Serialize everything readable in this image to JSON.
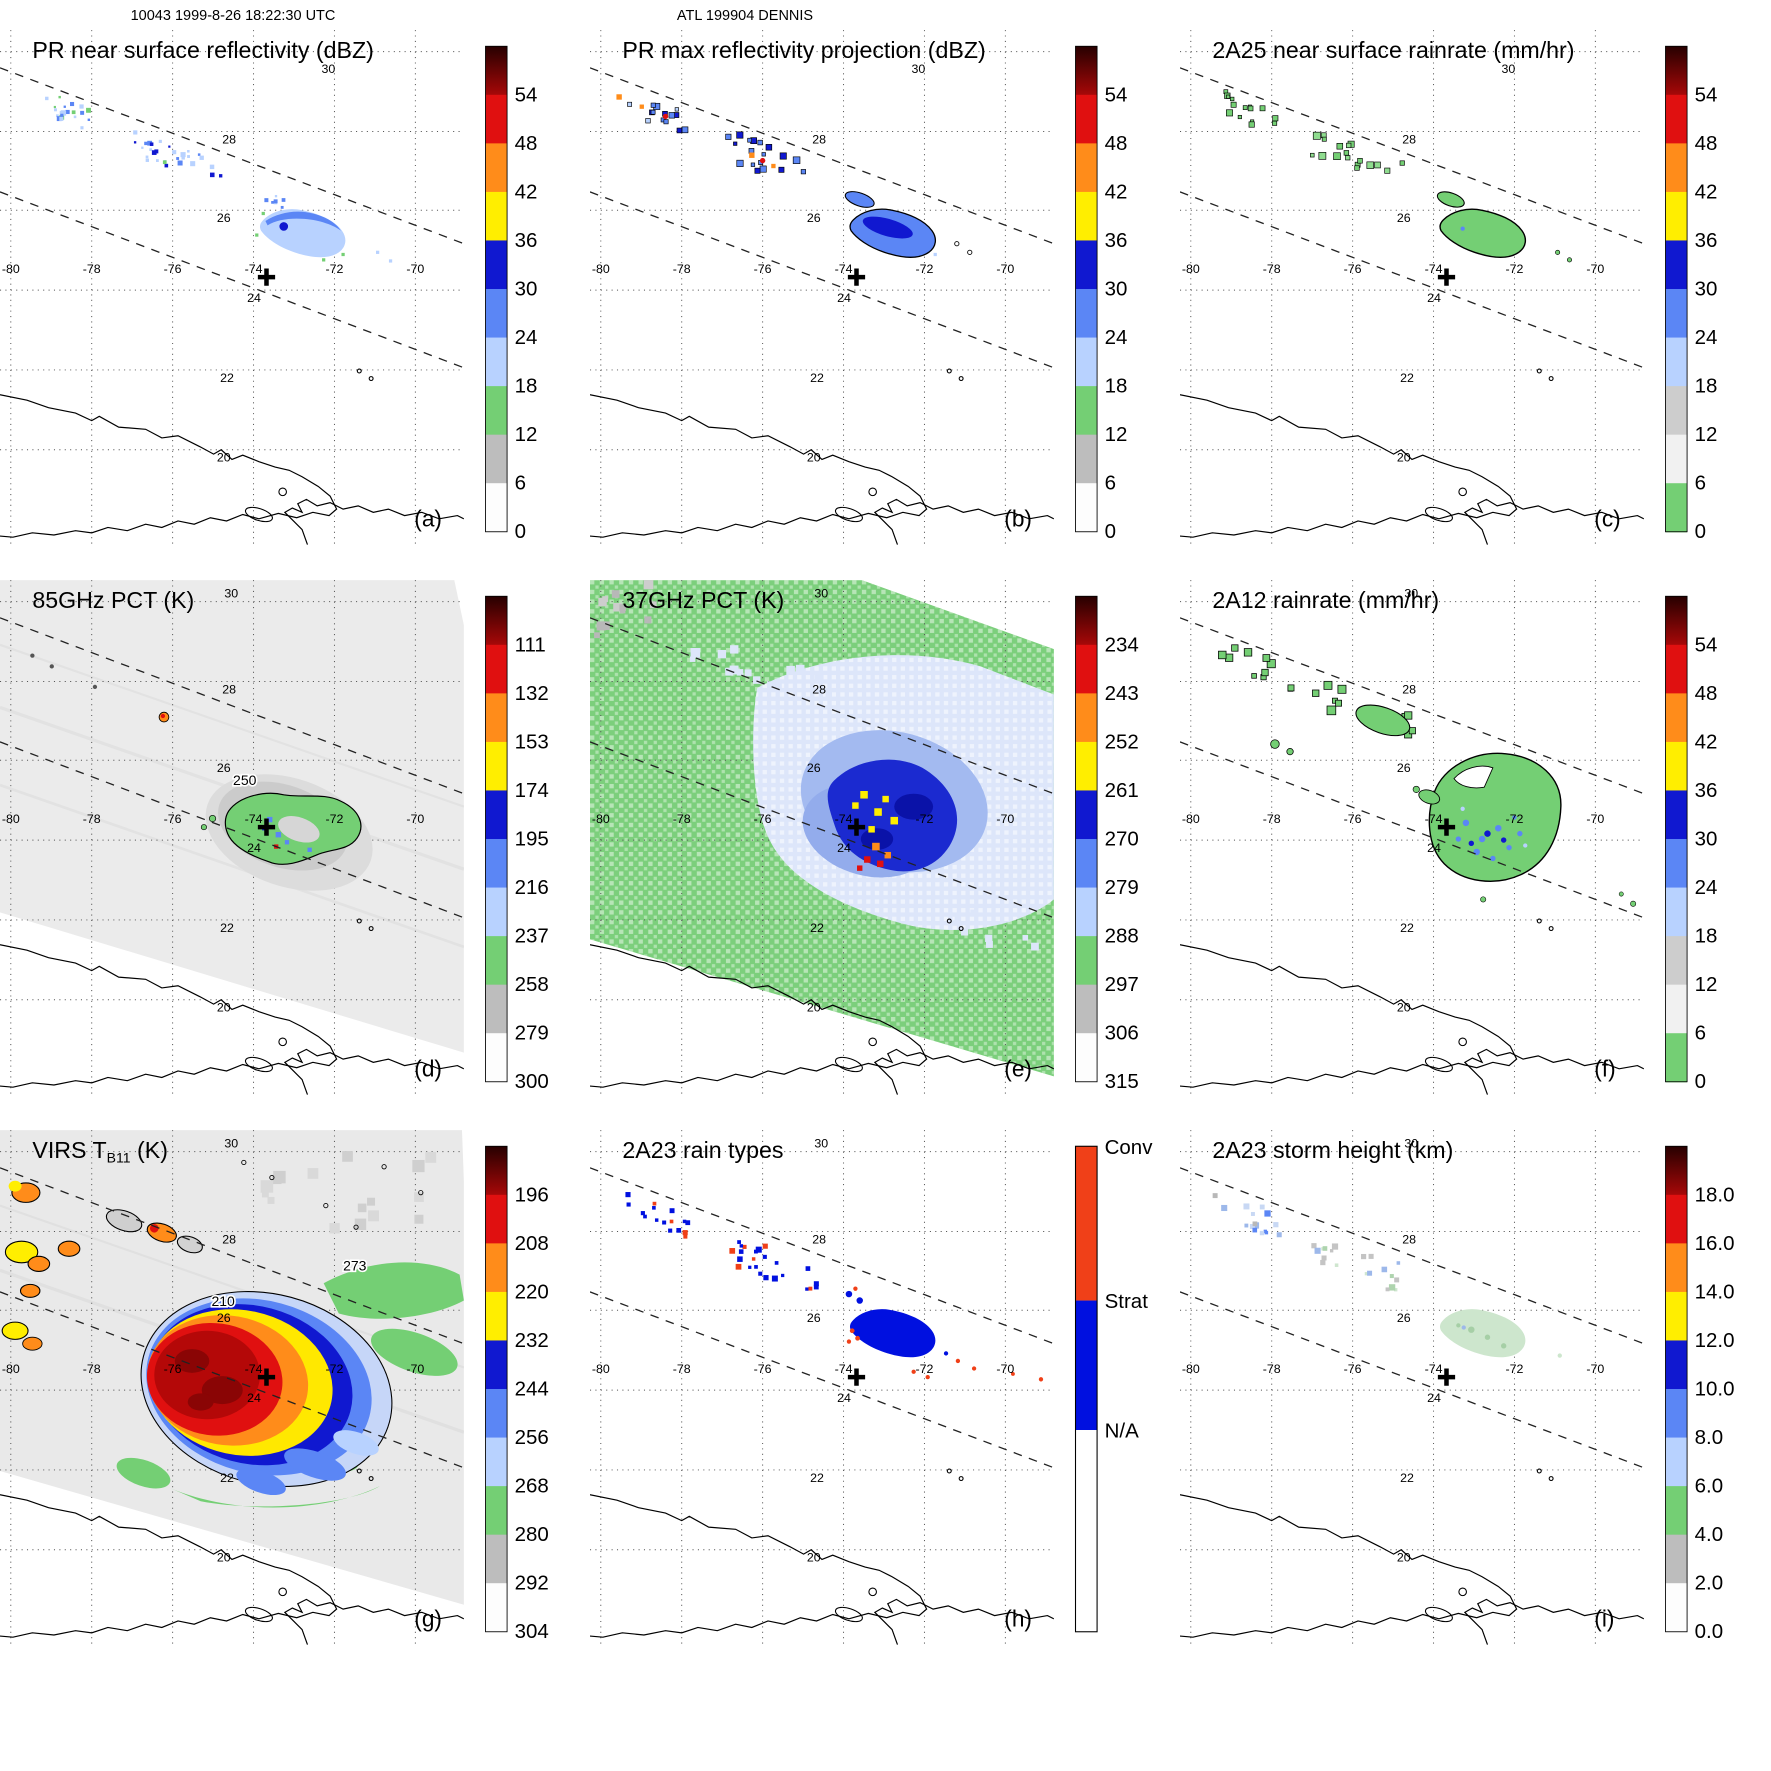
{
  "header": {
    "orbit_line": "10043 1999-8-26 18:22:30 UTC",
    "storm_line": "ATL 199904 DENNIS"
  },
  "map": {
    "lon_labels": [
      "-80",
      "-78",
      "-76",
      "-74",
      "-72",
      "-70"
    ],
    "lat_labels": [
      "30",
      "28",
      "26",
      "24",
      "22",
      "20"
    ]
  },
  "raintype": {
    "conv": "Conv",
    "strat": "Strat",
    "na": "N/A"
  },
  "panels": [
    {
      "id": "a",
      "letter": "(a)",
      "title": "PR near surface reflectivity (dBZ)",
      "color_scheme": "standard",
      "cbar": [
        "54",
        "48",
        "42",
        "36",
        "30",
        "24",
        "18",
        "12",
        "6",
        "0"
      ]
    },
    {
      "id": "b",
      "letter": "(b)",
      "title": "PR max reflectivity projection (dBZ)",
      "color_scheme": "standard",
      "cbar": [
        "54",
        "48",
        "42",
        "36",
        "30",
        "24",
        "18",
        "12",
        "6",
        "0"
      ]
    },
    {
      "id": "c",
      "letter": "(c)",
      "title": "2A25 near surface rainrate (mm/hr)",
      "color_scheme": "rain",
      "cbar": [
        "54",
        "48",
        "42",
        "36",
        "30",
        "24",
        "18",
        "12",
        "6",
        "0"
      ]
    },
    {
      "id": "d",
      "letter": "(d)",
      "title": "85GHz PCT (K)",
      "color_scheme": "standard",
      "cbar": [
        "111",
        "132",
        "153",
        "174",
        "195",
        "216",
        "237",
        "258",
        "279",
        "300"
      ],
      "annotations": [
        "250"
      ]
    },
    {
      "id": "e",
      "letter": "(e)",
      "title": "37GHz PCT (K)",
      "color_scheme": "standard",
      "cbar": [
        "234",
        "243",
        "252",
        "261",
        "270",
        "279",
        "288",
        "297",
        "306",
        "315"
      ]
    },
    {
      "id": "f",
      "letter": "(f)",
      "title": "2A12 rainrate (mm/hr)",
      "color_scheme": "rain",
      "cbar": [
        "54",
        "48",
        "42",
        "36",
        "30",
        "24",
        "18",
        "12",
        "6",
        "0"
      ]
    },
    {
      "id": "g",
      "letter": "(g)",
      "title": "VIRS T",
      "title_sub": "B11",
      "title_end": " (K)",
      "color_scheme": "standard",
      "cbar": [
        "196",
        "208",
        "220",
        "232",
        "244",
        "256",
        "268",
        "280",
        "292",
        "304"
      ],
      "annotations": [
        "273",
        "210"
      ]
    },
    {
      "id": "h",
      "letter": "(h)",
      "title": "2A23 rain types",
      "cbar_type": "raintype"
    },
    {
      "id": "i",
      "letter": "(i)",
      "title": "2A23 storm height (km)",
      "color_scheme": "standard",
      "cbar": [
        "18.0",
        "16.0",
        "14.0",
        "12.0",
        "10.0",
        "8.0",
        "6.0",
        "4.0",
        "2.0",
        "0.0"
      ]
    }
  ],
  "chart_data": {
    "type": "heatmap",
    "subtype": "3x3 multi-panel satellite overpass maps (TRMM-style)",
    "overpass": {
      "orbit": "10043",
      "time_utc": "1999-8-26 18:22:30",
      "storm": "ATL 199904 DENNIS"
    },
    "shared_axes": {
      "lon_ticks": [
        -80,
        -78,
        -76,
        -74,
        -72,
        -70
      ],
      "lat_ticks": [
        20,
        22,
        24,
        26,
        28,
        30
      ],
      "grid": true,
      "swath_edges": "two dashed diagonal lines NW-SE across each panel",
      "storm_center_marker": {
        "lon": -74.1,
        "lat": 24.4
      }
    },
    "panels": [
      {
        "label": "(a)",
        "title": "PR near surface reflectivity (dBZ)",
        "units": "dBZ",
        "colorbar_ticks": [
          0,
          6,
          12,
          18,
          24,
          30,
          36,
          42,
          48,
          54
        ],
        "scale_direction": "increases upward",
        "features": "scattered 18-30 dBZ echoes in NW part of PR swath; arc-shaped rainband southeast of storm center near 72W 25.5N"
      },
      {
        "label": "(b)",
        "title": "PR max reflectivity projection (dBZ)",
        "units": "dBZ",
        "colorbar_ticks": [
          0,
          6,
          12,
          18,
          24,
          30,
          36,
          42,
          48,
          54
        ],
        "scale_direction": "increases upward",
        "features": "same echo regions as (a) with higher maxima (30-42 dBZ) and black contour outlines"
      },
      {
        "label": "(c)",
        "title": "2A25 near surface rainrate (mm/hr)",
        "units": "mm/hr",
        "colorbar_ticks": [
          0,
          6,
          12,
          18,
          24,
          30,
          36,
          42,
          48,
          54
        ],
        "scale_direction": "increases upward",
        "features": "light rain (0-6 mm/hr, green) in the same regions as the PR echoes, outlined in black"
      },
      {
        "label": "(d)",
        "title": "85GHz PCT (K)",
        "units": "K",
        "colorbar_ticks": [
          111,
          132,
          153,
          174,
          195,
          216,
          237,
          258,
          279,
          300
        ],
        "scale_direction": "decreases upward (cold at top)",
        "contour_labels": [
          250
        ],
        "features": "wide TMI swath of warm background (~280-300 K, light gray); depressed PCT region (237-258 K, green) with embedded 195-216 K minima southeast of center; isolated cold spot near 76W 27N"
      },
      {
        "label": "(e)",
        "title": "37GHz PCT (K)",
        "units": "K",
        "colorbar_ticks": [
          234,
          243,
          252,
          261,
          270,
          279,
          288,
          297,
          306,
          315
        ],
        "scale_direction": "decreases upward (cold at top)",
        "features": "ocean background 288-297 K (green); broad 279-288 K region and 270-279 K core with scattered 252-270 K pixels southeast of center"
      },
      {
        "label": "(f)",
        "title": "2A12 rainrate (mm/hr)",
        "units": "mm/hr",
        "colorbar_ticks": [
          0,
          6,
          12,
          18,
          24,
          30,
          36,
          42,
          48,
          54
        ],
        "scale_direction": "increases upward",
        "features": "large light-rain shield (0-6 mm/hr, green) southeast of center with embedded 12-30 mm/hr cells; smaller rain areas to the northwest"
      },
      {
        "label": "(g)",
        "title": "VIRS TB11 (K)",
        "units": "K",
        "colorbar_ticks": [
          196,
          208,
          220,
          232,
          244,
          256,
          268,
          280,
          292,
          304
        ],
        "scale_direction": "decreases upward (cold at top)",
        "contour_labels": [
          273,
          210
        ],
        "features": "large cold cloud shield: <208 K core (dark red) over storm center with concentric warmer rings and spiral banding; scattered cold cells northwest"
      },
      {
        "label": "(h)",
        "title": "2A23 rain types",
        "classes": [
          "Conv",
          "Strat",
          "N/A"
        ],
        "features": "mostly stratiform (blue) echo pixels with embedded convective (orange-red) pixels; stratiform band southeast of center"
      },
      {
        "label": "(i)",
        "title": "2A23 storm height (km)",
        "units": "km",
        "colorbar_ticks": [
          0,
          2,
          4,
          6,
          8,
          10,
          12,
          14,
          16,
          18
        ],
        "scale_direction": "increases upward",
        "features": "echo tops mostly 4-8 km in the same regions as the PR echoes"
      }
    ]
  }
}
